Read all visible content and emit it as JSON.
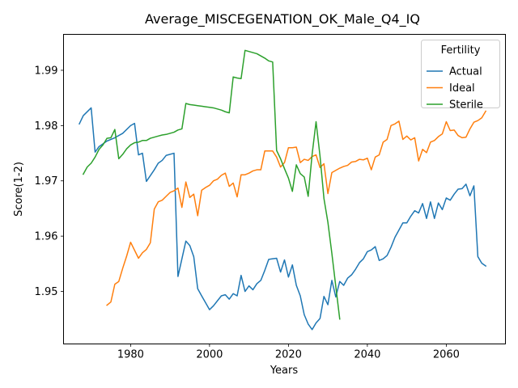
{
  "chart_data": {
    "type": "line",
    "title": "Average_MISCEGENATION_OK_Male_Q4_IQ",
    "xlabel": "Years",
    "ylabel": "Score(1-2)",
    "xlim": [
      1963,
      2075
    ],
    "ylim": [
      1.9405,
      1.9965
    ],
    "xticks": [
      1980,
      2000,
      2020,
      2040,
      2060
    ],
    "yticks": [
      1.95,
      1.96,
      1.97,
      1.98,
      1.99
    ],
    "grid": false,
    "legend": {
      "title": "Fertility",
      "placement": "top-right"
    },
    "series": [
      {
        "name": "Actual",
        "color": "#1f77b4",
        "x": [
          1967,
          1968,
          1970,
          1971,
          1972,
          1974,
          1976,
          1978,
          1980,
          1981,
          1982,
          1983,
          1984,
          1986,
          1987,
          1988,
          1989,
          1991,
          1992,
          1994,
          1995,
          1996,
          1997,
          1998,
          2000,
          2001,
          2002,
          2003,
          2004,
          2005,
          2006,
          2007,
          2008,
          2009,
          2010,
          2011,
          2012,
          2013,
          2014,
          2015,
          2016,
          2017,
          2018,
          2019,
          2020,
          2021,
          2022,
          2023,
          2024,
          2025,
          2026,
          2027,
          2028,
          2029,
          2030,
          2031,
          2032,
          2033,
          2034,
          2035,
          2036,
          2037,
          2038,
          2039,
          2040,
          2041,
          2042,
          2043,
          2044,
          2045,
          2046,
          2047,
          2048,
          2049,
          2050,
          2051,
          2052,
          2053,
          2054,
          2055,
          2056,
          2057,
          2058,
          2059,
          2060,
          2061,
          2062,
          2063,
          2064,
          2065,
          2066,
          2067,
          2068,
          2069,
          2070
        ],
        "y": [
          1.9803,
          1.9818,
          1.9832,
          1.9752,
          1.9762,
          1.9772,
          1.9778,
          1.9786,
          1.98,
          1.9804,
          1.9747,
          1.975,
          1.9699,
          1.972,
          1.9732,
          1.9737,
          1.9746,
          1.975,
          1.9527,
          1.9591,
          1.9583,
          1.9563,
          1.9505,
          1.9492,
          1.9467,
          1.9474,
          1.9483,
          1.9492,
          1.9494,
          1.9486,
          1.9496,
          1.9492,
          1.9529,
          1.95,
          1.951,
          1.9503,
          1.9514,
          1.952,
          1.9538,
          1.9558,
          1.9559,
          1.956,
          1.9535,
          1.9557,
          1.9526,
          1.9548,
          1.9511,
          1.9492,
          1.9458,
          1.9441,
          1.9431,
          1.9443,
          1.9451,
          1.9491,
          1.9476,
          1.952,
          1.949,
          1.9518,
          1.9511,
          1.9524,
          1.953,
          1.954,
          1.9552,
          1.9559,
          1.9572,
          1.9575,
          1.9581,
          1.9556,
          1.9559,
          1.9565,
          1.958,
          1.9598,
          1.9611,
          1.9624,
          1.9624,
          1.9636,
          1.9646,
          1.9642,
          1.9659,
          1.9632,
          1.9662,
          1.9632,
          1.966,
          1.9648,
          1.9669,
          1.9665,
          1.9676,
          1.9685,
          1.9686,
          1.9694,
          1.9673,
          1.9691,
          1.9563,
          1.9551,
          1.9546
        ]
      },
      {
        "name": "Ideal",
        "color": "#ff7f0e",
        "x": [
          1974,
          1975,
          1976,
          1977,
          1978,
          1979,
          1980,
          1982,
          1983,
          1984,
          1985,
          1986,
          1987,
          1988,
          1989,
          1990,
          1991,
          1992,
          1993,
          1994,
          1995,
          1996,
          1997,
          1998,
          1999,
          2000,
          2001,
          2002,
          2003,
          2004,
          2005,
          2006,
          2007,
          2008,
          2009,
          2010,
          2011,
          2012,
          2013,
          2014,
          2015,
          2016,
          2017,
          2018,
          2019,
          2020,
          2021,
          2022,
          2023,
          2024,
          2025,
          2026,
          2027,
          2028,
          2029,
          2030,
          2031,
          2032,
          2033,
          2034,
          2035,
          2036,
          2037,
          2038,
          2039,
          2040,
          2041,
          2042,
          2043,
          2044,
          2045,
          2046,
          2047,
          2048,
          2049,
          2050,
          2051,
          2052,
          2053,
          2054,
          2055,
          2056,
          2057,
          2058,
          2059,
          2060,
          2061,
          2062,
          2063,
          2064,
          2065,
          2066,
          2067,
          2068,
          2069,
          2070
        ],
        "y": [
          1.9475,
          1.9481,
          1.9513,
          1.9518,
          1.9542,
          1.9564,
          1.9589,
          1.956,
          1.957,
          1.9576,
          1.9588,
          1.9649,
          1.9662,
          1.9665,
          1.9672,
          1.9679,
          1.9682,
          1.9687,
          1.9652,
          1.9698,
          1.967,
          1.9676,
          1.9637,
          1.9683,
          1.9688,
          1.9692,
          1.97,
          1.9703,
          1.971,
          1.9714,
          1.969,
          1.9696,
          1.9671,
          1.9711,
          1.9711,
          1.9714,
          1.9718,
          1.972,
          1.972,
          1.9754,
          1.9754,
          1.9754,
          1.9743,
          1.9725,
          1.9733,
          1.976,
          1.976,
          1.9761,
          1.9733,
          1.9739,
          1.9737,
          1.9744,
          1.9747,
          1.9724,
          1.9731,
          1.9677,
          1.9715,
          1.9719,
          1.9723,
          1.9726,
          1.9728,
          1.9734,
          1.9735,
          1.9739,
          1.9738,
          1.9741,
          1.972,
          1.9743,
          1.9747,
          1.977,
          1.9775,
          1.98,
          1.9803,
          1.9808,
          1.9775,
          1.9781,
          1.9774,
          1.9778,
          1.9736,
          1.9757,
          1.9751,
          1.977,
          1.9773,
          1.978,
          1.9785,
          1.9807,
          1.9791,
          1.9792,
          1.9782,
          1.9778,
          1.9779,
          1.9794,
          1.9806,
          1.9809,
          1.9814,
          1.9826
        ]
      },
      {
        "name": "Sterile",
        "color": "#2ca02c",
        "x": [
          1968,
          1969,
          1970,
          1971,
          1972,
          1973,
          1974,
          1975,
          1976,
          1977,
          1978,
          1979,
          1980,
          1981,
          1982,
          1983,
          1984,
          1985,
          1986,
          1987,
          1988,
          1989,
          1990,
          1991,
          1992,
          1993,
          1994,
          1995,
          1996,
          1997,
          1998,
          1999,
          2000,
          2001,
          2002,
          2003,
          2004,
          2005,
          2006,
          2007,
          2008,
          2009,
          2010,
          2011,
          2012,
          2013,
          2014,
          2015,
          2016,
          2017,
          2018,
          2019,
          2020,
          2021,
          2022,
          2023,
          2024,
          2025,
          2026,
          2027,
          2028,
          2029,
          2030,
          2031,
          2032,
          2033
        ],
        "y": [
          1.9712,
          1.9725,
          1.9732,
          1.9743,
          1.9757,
          1.9765,
          1.9777,
          1.9778,
          1.9793,
          1.974,
          1.9748,
          1.9758,
          1.9765,
          1.9769,
          1.977,
          1.9773,
          1.9773,
          1.9777,
          1.9779,
          1.9781,
          1.9783,
          1.9784,
          1.9786,
          1.9788,
          1.9792,
          1.9794,
          1.984,
          1.9838,
          1.9837,
          1.9836,
          1.9835,
          1.9834,
          1.9833,
          1.9832,
          1.983,
          1.9828,
          1.9825,
          1.9823,
          1.9888,
          1.9886,
          1.9885,
          1.9936,
          1.9934,
          1.9932,
          1.993,
          1.9926,
          1.9922,
          1.9917,
          1.9915,
          1.9755,
          1.974,
          1.9722,
          1.9705,
          1.9681,
          1.9729,
          1.9713,
          1.9707,
          1.9672,
          1.9748,
          1.9807,
          1.9745,
          1.9668,
          1.9625,
          1.9569,
          1.9509,
          1.945
        ]
      }
    ]
  }
}
